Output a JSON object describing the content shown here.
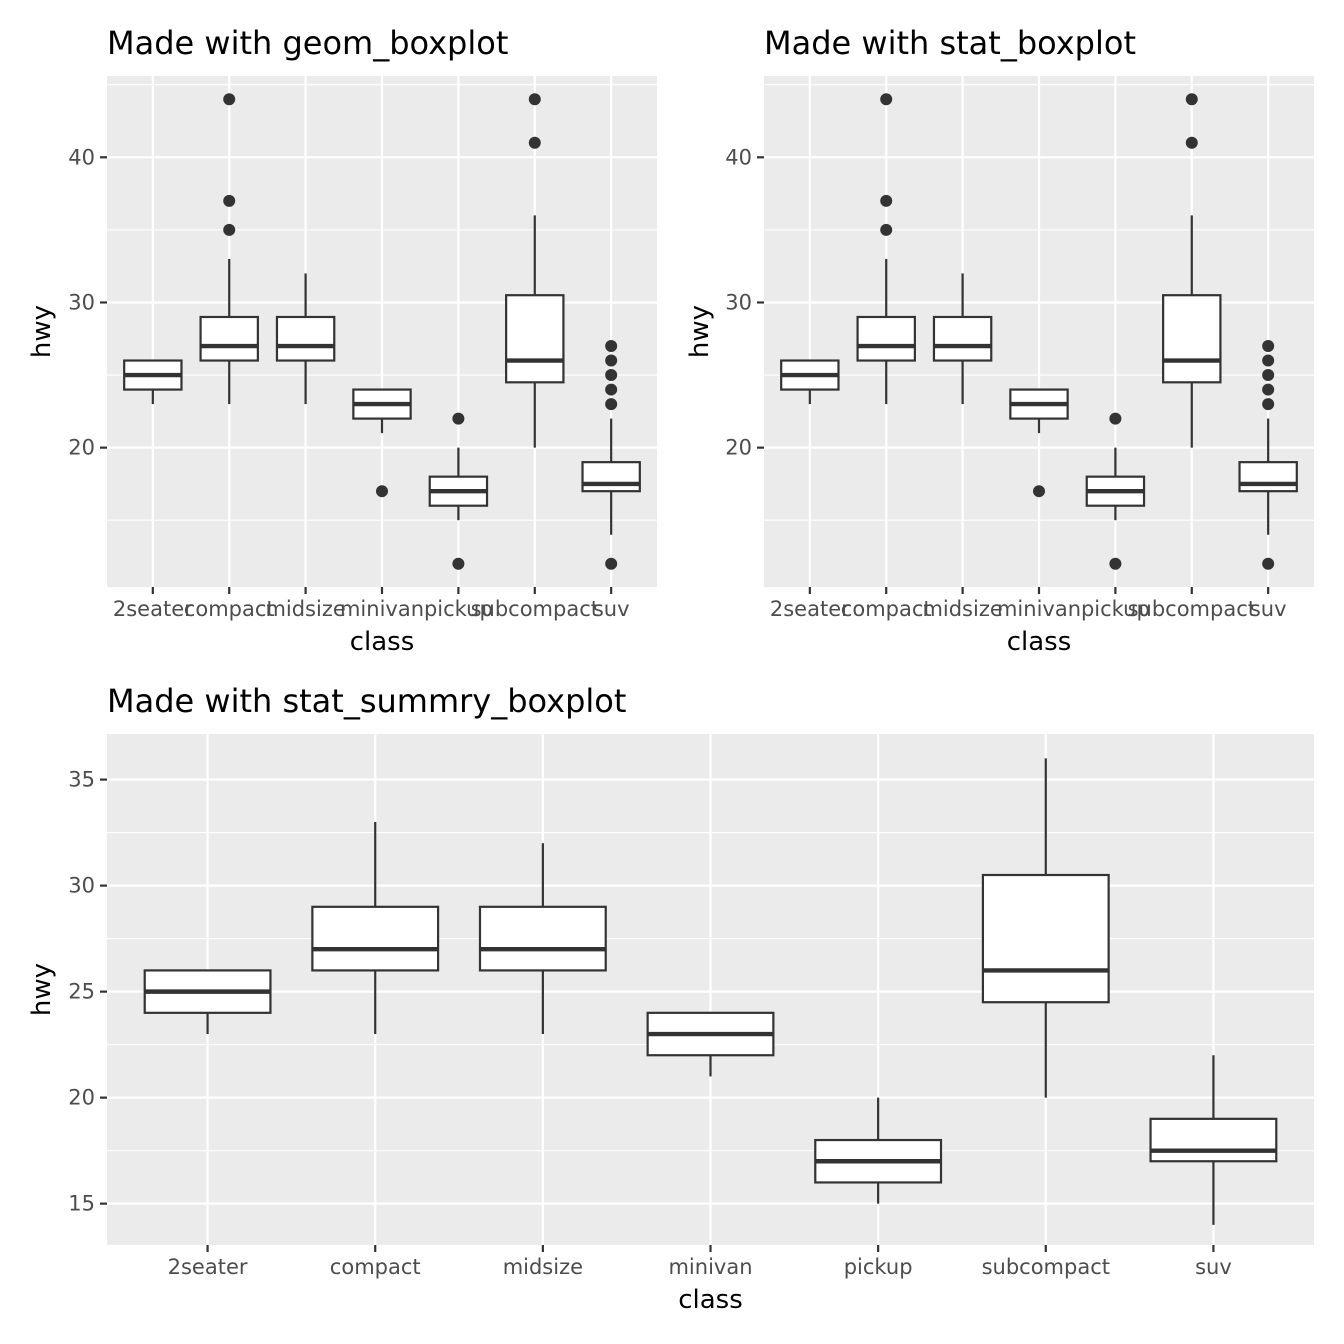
{
  "chart_data": [
    {
      "type": "boxplot",
      "title": "Made with geom_boxplot",
      "xlabel": "class",
      "ylabel": "hwy",
      "ylim": [
        10.4,
        45.6
      ],
      "yticks": [
        20,
        30,
        40
      ],
      "categories": [
        "2seater",
        "compact",
        "midsize",
        "minivan",
        "pickup",
        "subcompact",
        "suv"
      ],
      "boxes": [
        {
          "lower_whisker": 23,
          "q1": 24,
          "median": 25,
          "q3": 26,
          "upper_whisker": 26,
          "outliers": []
        },
        {
          "lower_whisker": 23,
          "q1": 26,
          "median": 27,
          "q3": 29,
          "upper_whisker": 33,
          "outliers": [
            35,
            37,
            44
          ]
        },
        {
          "lower_whisker": 23,
          "q1": 26,
          "median": 27,
          "q3": 29,
          "upper_whisker": 32,
          "outliers": []
        },
        {
          "lower_whisker": 21,
          "q1": 22,
          "median": 23,
          "q3": 24,
          "upper_whisker": 24,
          "outliers": [
            17
          ]
        },
        {
          "lower_whisker": 15,
          "q1": 16,
          "median": 17,
          "q3": 18,
          "upper_whisker": 20,
          "outliers": [
            12,
            22
          ]
        },
        {
          "lower_whisker": 20,
          "q1": 24.5,
          "median": 26,
          "q3": 30.5,
          "upper_whisker": 36,
          "outliers": [
            41,
            44
          ]
        },
        {
          "lower_whisker": 14,
          "q1": 17,
          "median": 17.5,
          "q3": 19,
          "upper_whisker": 22,
          "outliers": [
            12,
            23,
            24,
            25,
            26,
            27
          ]
        }
      ]
    },
    {
      "type": "boxplot",
      "title": "Made with stat_boxplot",
      "xlabel": "class",
      "ylabel": "hwy",
      "ylim": [
        10.4,
        45.6
      ],
      "yticks": [
        20,
        30,
        40
      ],
      "categories": [
        "2seater",
        "compact",
        "midsize",
        "minivan",
        "pickup",
        "subcompact",
        "suv"
      ],
      "boxes": [
        {
          "lower_whisker": 23,
          "q1": 24,
          "median": 25,
          "q3": 26,
          "upper_whisker": 26,
          "outliers": []
        },
        {
          "lower_whisker": 23,
          "q1": 26,
          "median": 27,
          "q3": 29,
          "upper_whisker": 33,
          "outliers": [
            35,
            37,
            44
          ]
        },
        {
          "lower_whisker": 23,
          "q1": 26,
          "median": 27,
          "q3": 29,
          "upper_whisker": 32,
          "outliers": []
        },
        {
          "lower_whisker": 21,
          "q1": 22,
          "median": 23,
          "q3": 24,
          "upper_whisker": 24,
          "outliers": [
            17
          ]
        },
        {
          "lower_whisker": 15,
          "q1": 16,
          "median": 17,
          "q3": 18,
          "upper_whisker": 20,
          "outliers": [
            12,
            22
          ]
        },
        {
          "lower_whisker": 20,
          "q1": 24.5,
          "median": 26,
          "q3": 30.5,
          "upper_whisker": 36,
          "outliers": [
            41,
            44
          ]
        },
        {
          "lower_whisker": 14,
          "q1": 17,
          "median": 17.5,
          "q3": 19,
          "upper_whisker": 22,
          "outliers": [
            12,
            23,
            24,
            25,
            26,
            27
          ]
        }
      ]
    },
    {
      "type": "boxplot",
      "title": "Made with stat_summry_boxplot",
      "xlabel": "class",
      "ylabel": "hwy",
      "ylim": [
        13.05,
        37.15
      ],
      "yticks": [
        15,
        20,
        25,
        30,
        35
      ],
      "categories": [
        "2seater",
        "compact",
        "midsize",
        "minivan",
        "pickup",
        "subcompact",
        "suv"
      ],
      "boxes": [
        {
          "lower_whisker": 23,
          "q1": 24,
          "median": 25,
          "q3": 26,
          "upper_whisker": 26,
          "outliers": []
        },
        {
          "lower_whisker": 23,
          "q1": 26,
          "median": 27,
          "q3": 29,
          "upper_whisker": 33,
          "outliers": []
        },
        {
          "lower_whisker": 23,
          "q1": 26,
          "median": 27,
          "q3": 29,
          "upper_whisker": 32,
          "outliers": []
        },
        {
          "lower_whisker": 21,
          "q1": 22,
          "median": 23,
          "q3": 24,
          "upper_whisker": 24,
          "outliers": []
        },
        {
          "lower_whisker": 15,
          "q1": 16,
          "median": 17,
          "q3": 18,
          "upper_whisker": 20,
          "outliers": []
        },
        {
          "lower_whisker": 20,
          "q1": 24.5,
          "median": 26,
          "q3": 30.5,
          "upper_whisker": 36,
          "outliers": []
        },
        {
          "lower_whisker": 14,
          "q1": 17,
          "median": 17.5,
          "q3": 19,
          "upper_whisker": 22,
          "outliers": []
        }
      ]
    }
  ]
}
